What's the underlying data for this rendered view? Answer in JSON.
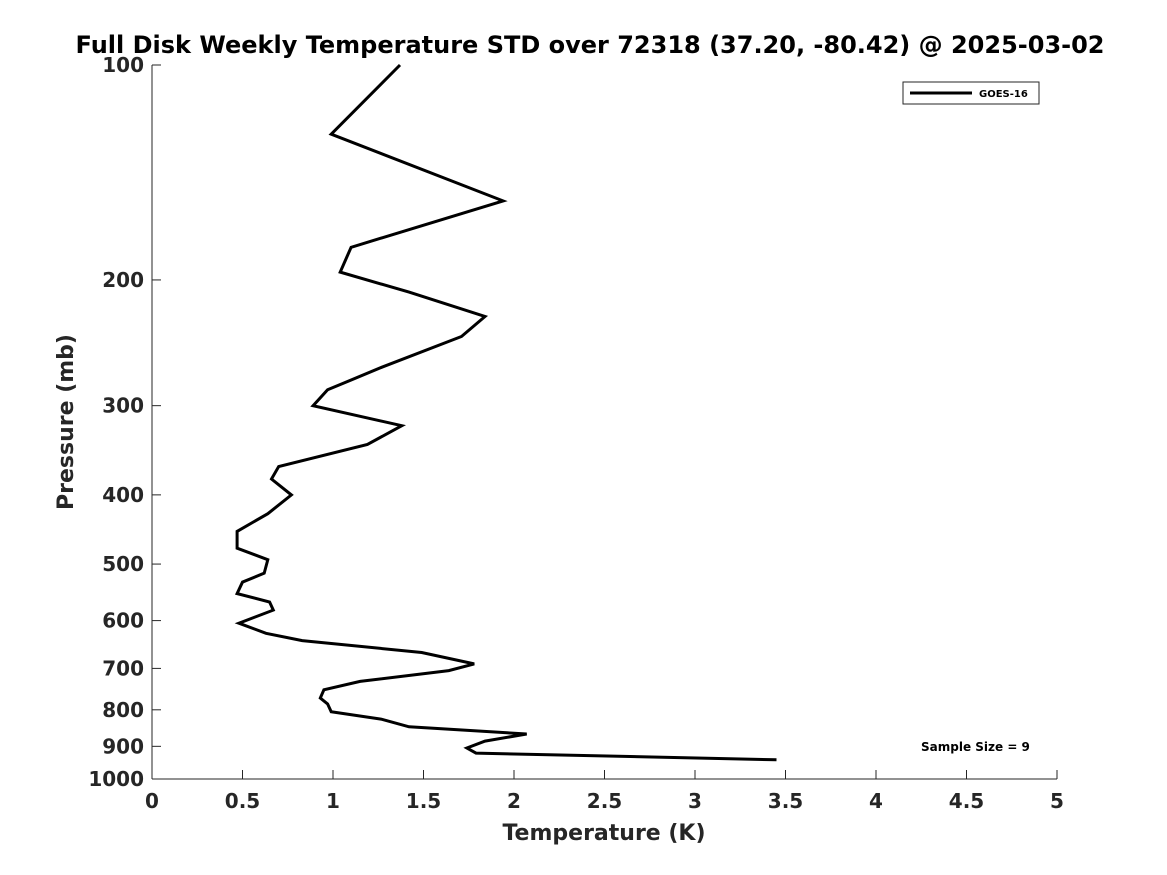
{
  "chart_data": {
    "type": "line",
    "title": "Full Disk Weekly Temperature STD over 72318 (37.20, -80.42) @ 2025-03-02",
    "xlabel": "Temperature (K)",
    "ylabel": "Pressure (mb)",
    "xlim": [
      0,
      5
    ],
    "ylim": [
      100,
      1000
    ],
    "y_scale": "log",
    "y_reversed": true,
    "grid": false,
    "legend_position": "top-right",
    "x_ticks": [
      "0",
      "0.5",
      "1",
      "1.5",
      "2",
      "2.5",
      "3",
      "3.5",
      "4",
      "4.5",
      "5"
    ],
    "y_ticks": [
      "100",
      "200",
      "300",
      "400",
      "500",
      "600",
      "700",
      "800",
      "900",
      "1000"
    ],
    "series": [
      {
        "name": "GOES-16",
        "color": "#000000",
        "points": [
          [
            1.37,
            100
          ],
          [
            0.99,
            125
          ],
          [
            1.94,
            155
          ],
          [
            1.1,
            180
          ],
          [
            1.04,
            195
          ],
          [
            1.42,
            208
          ],
          [
            1.84,
            225
          ],
          [
            1.71,
            240
          ],
          [
            1.27,
            265
          ],
          [
            0.97,
            285
          ],
          [
            0.89,
            300
          ],
          [
            1.38,
            320
          ],
          [
            1.19,
            340
          ],
          [
            0.7,
            365
          ],
          [
            0.66,
            380
          ],
          [
            0.77,
            400
          ],
          [
            0.64,
            425
          ],
          [
            0.47,
            450
          ],
          [
            0.47,
            475
          ],
          [
            0.64,
            493
          ],
          [
            0.62,
            515
          ],
          [
            0.5,
            530
          ],
          [
            0.47,
            550
          ],
          [
            0.65,
            565
          ],
          [
            0.67,
            580
          ],
          [
            0.48,
            605
          ],
          [
            0.63,
            625
          ],
          [
            0.83,
            640
          ],
          [
            1.49,
            665
          ],
          [
            1.78,
            690
          ],
          [
            1.64,
            705
          ],
          [
            1.15,
            730
          ],
          [
            0.95,
            750
          ],
          [
            0.93,
            770
          ],
          [
            0.97,
            785
          ],
          [
            0.99,
            805
          ],
          [
            1.27,
            825
          ],
          [
            1.42,
            845
          ],
          [
            2.07,
            865
          ],
          [
            1.84,
            885
          ],
          [
            1.74,
            905
          ],
          [
            1.79,
            920
          ],
          [
            3.45,
            940
          ]
        ]
      }
    ],
    "legend_label": "GOES-16",
    "annotation": "Sample Size = 9"
  }
}
